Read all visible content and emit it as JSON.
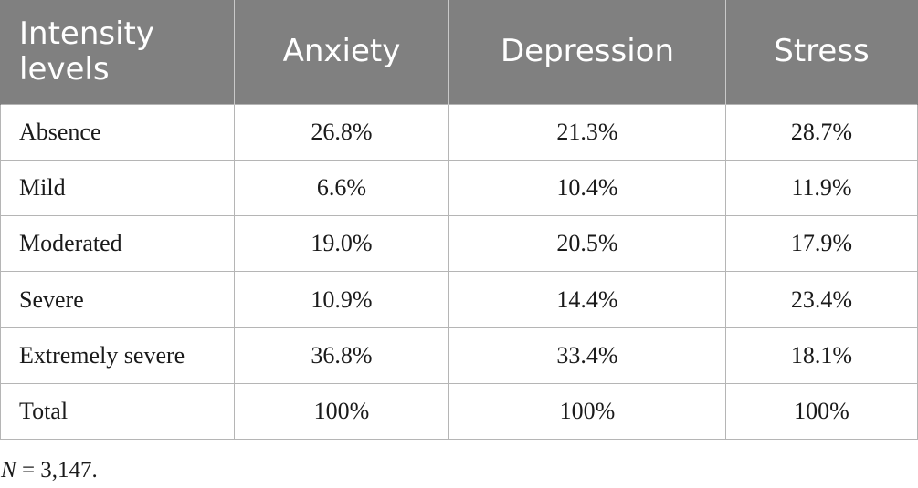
{
  "table": {
    "headers": [
      "Intensity levels",
      "Anxiety",
      "Depression",
      "Stress"
    ],
    "rows": [
      {
        "label": "Absence",
        "values": [
          "26.8%",
          "21.3%",
          "28.7%"
        ]
      },
      {
        "label": "Mild",
        "values": [
          "6.6%",
          "10.4%",
          "11.9%"
        ]
      },
      {
        "label": "Moderated",
        "values": [
          "19.0%",
          "20.5%",
          "17.9%"
        ]
      },
      {
        "label": "Severe",
        "values": [
          "10.9%",
          "14.4%",
          "23.4%"
        ]
      },
      {
        "label": "Extremely severe",
        "values": [
          "36.8%",
          "33.4%",
          "18.1%"
        ]
      },
      {
        "label": "Total",
        "values": [
          "100%",
          "100%",
          "100%"
        ]
      }
    ]
  },
  "footnote": {
    "variable": "N",
    "text": " = 3,147."
  }
}
